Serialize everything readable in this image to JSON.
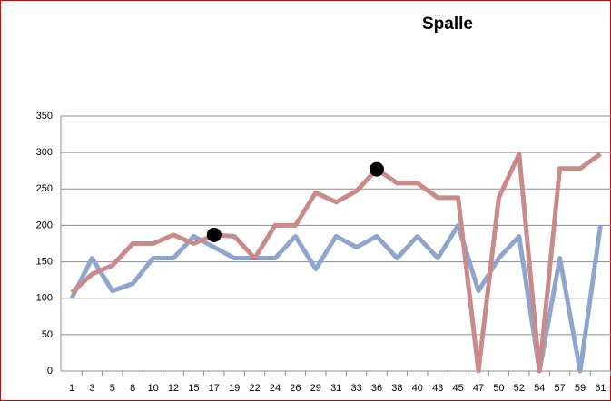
{
  "chart_data": {
    "type": "line",
    "title": "Spalle",
    "categories": [
      "1",
      "3",
      "5",
      "8",
      "10",
      "12",
      "15",
      "17",
      "19",
      "22",
      "24",
      "26",
      "29",
      "31",
      "33",
      "36",
      "38",
      "40",
      "43",
      "45",
      "47",
      "50",
      "52",
      "54",
      "57",
      "59",
      "61"
    ],
    "series": [
      {
        "color": "#8ea6cd",
        "values": [
          100,
          155,
          110,
          120,
          155,
          155,
          185,
          170,
          155,
          155,
          155,
          185,
          140,
          185,
          170,
          185,
          155,
          185,
          155,
          200,
          110,
          155,
          185,
          0,
          155,
          0,
          200
        ]
      },
      {
        "color": "#c98a89",
        "values": [
          108,
          133,
          145,
          175,
          175,
          187,
          175,
          187,
          185,
          155,
          200,
          200,
          245,
          232,
          247,
          277,
          258,
          258,
          238,
          238,
          0,
          238,
          298,
          0,
          278,
          278,
          298
        ]
      },
      {
        "type": "marker",
        "color": "#000000",
        "values": [
          null,
          null,
          null,
          null,
          null,
          null,
          null,
          187,
          null,
          null,
          null,
          null,
          null,
          null,
          null,
          277,
          null,
          null,
          null,
          null,
          null,
          null,
          null,
          null,
          null,
          null,
          null
        ]
      }
    ],
    "ylim": [
      0,
      350
    ],
    "yticks": [
      0,
      50,
      100,
      150,
      200,
      250,
      300,
      350
    ],
    "grid": true
  }
}
